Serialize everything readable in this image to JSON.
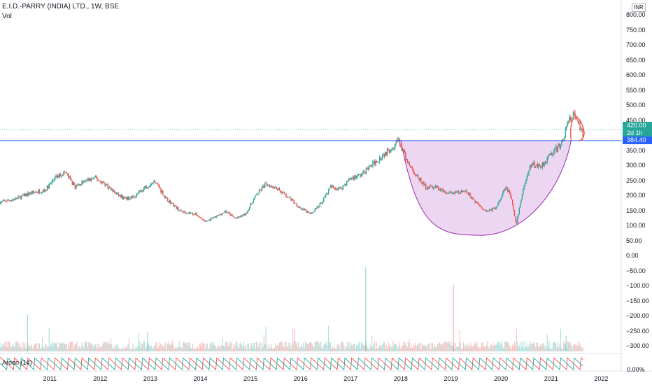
{
  "header": {
    "title": "E.I.D.-PARRY (INDIA) LTD., 1W, BSE",
    "vol_label": "Vol",
    "currency": "INR"
  },
  "price_tag": {
    "price": "420.00",
    "countdown": "2d 1h"
  },
  "level_tag": {
    "value": "384.40"
  },
  "aroon": {
    "label": "Aroon (14)",
    "value": "0.00%"
  },
  "colors": {
    "up": "#26a69a",
    "down": "#ef5350",
    "level_line": "#2962ff",
    "cup_fill": "#e6c8ee",
    "cup_stroke": "#9c27b0",
    "handle_stroke": "#f44336"
  },
  "y_axis": {
    "ticks": [
      "800.00",
      "750.00",
      "700.00",
      "650.00",
      "600.00",
      "550.00",
      "500.00",
      "450.00",
      "400.00",
      "350.00",
      "300.00",
      "250.00",
      "200.00",
      "150.00",
      "100.00",
      "50.00",
      "0.00",
      "−50.00",
      "−100.00",
      "−150.00",
      "−200.00",
      "−250.00",
      "−300.00"
    ]
  },
  "x_axis": {
    "ticks": [
      "2011",
      "2012",
      "2013",
      "2014",
      "2015",
      "2016",
      "2017",
      "2018",
      "2019",
      "2020",
      "2021",
      "2022"
    ]
  },
  "chart_data": {
    "type": "line",
    "x": [
      2010.0,
      2010.3,
      2010.6,
      2010.9,
      2011.1,
      2011.3,
      2011.5,
      2011.7,
      2011.9,
      2012.1,
      2012.3,
      2012.5,
      2012.7,
      2012.9,
      2013.1,
      2013.3,
      2013.6,
      2013.9,
      2014.1,
      2014.3,
      2014.5,
      2014.7,
      2014.9,
      2015.1,
      2015.3,
      2015.5,
      2015.8,
      2016.0,
      2016.2,
      2016.4,
      2016.6,
      2016.8,
      2017.0,
      2017.2,
      2017.4,
      2017.6,
      2017.8,
      2017.95,
      2018.1,
      2018.3,
      2018.5,
      2018.7,
      2018.9,
      2019.1,
      2019.3,
      2019.5,
      2019.7,
      2019.9,
      2020.1,
      2020.2,
      2020.3,
      2020.45,
      2020.6,
      2020.8,
      2021.0,
      2021.2,
      2021.35,
      2021.45,
      2021.55,
      2021.65
    ],
    "series": [
      {
        "values": [
          180,
          190,
          210,
          220,
          260,
          280,
          230,
          250,
          260,
          240,
          210,
          190,
          200,
          230,
          250,
          195,
          150,
          140,
          115,
          130,
          150,
          125,
          140,
          200,
          240,
          230,
          190,
          160,
          140,
          175,
          230,
          225,
          260,
          270,
          300,
          330,
          360,
          385,
          325,
          270,
          230,
          230,
          210,
          210,
          215,
          180,
          150,
          160,
          235,
          195,
          105,
          230,
          305,
          300,
          340,
          370,
          450,
          470,
          440,
          395
        ]
      }
    ],
    "volume_note": "",
    "level_line": 384.4,
    "last_price": 420.0,
    "cup": {
      "start_x": 2018.0,
      "bottom_x": 2019.6,
      "bottom_y": 70,
      "end_x": 2021.4,
      "rim_y": 385
    },
    "handle": {
      "start_x": 2021.4,
      "end_x": 2021.6,
      "top_y": 470,
      "bottom_y": 384
    },
    "aroon_period": 14,
    "ylim": [
      -330,
      810
    ],
    "xlim": [
      2010.0,
      2022.4
    ],
    "grid": false,
    "legend": "top-left"
  }
}
